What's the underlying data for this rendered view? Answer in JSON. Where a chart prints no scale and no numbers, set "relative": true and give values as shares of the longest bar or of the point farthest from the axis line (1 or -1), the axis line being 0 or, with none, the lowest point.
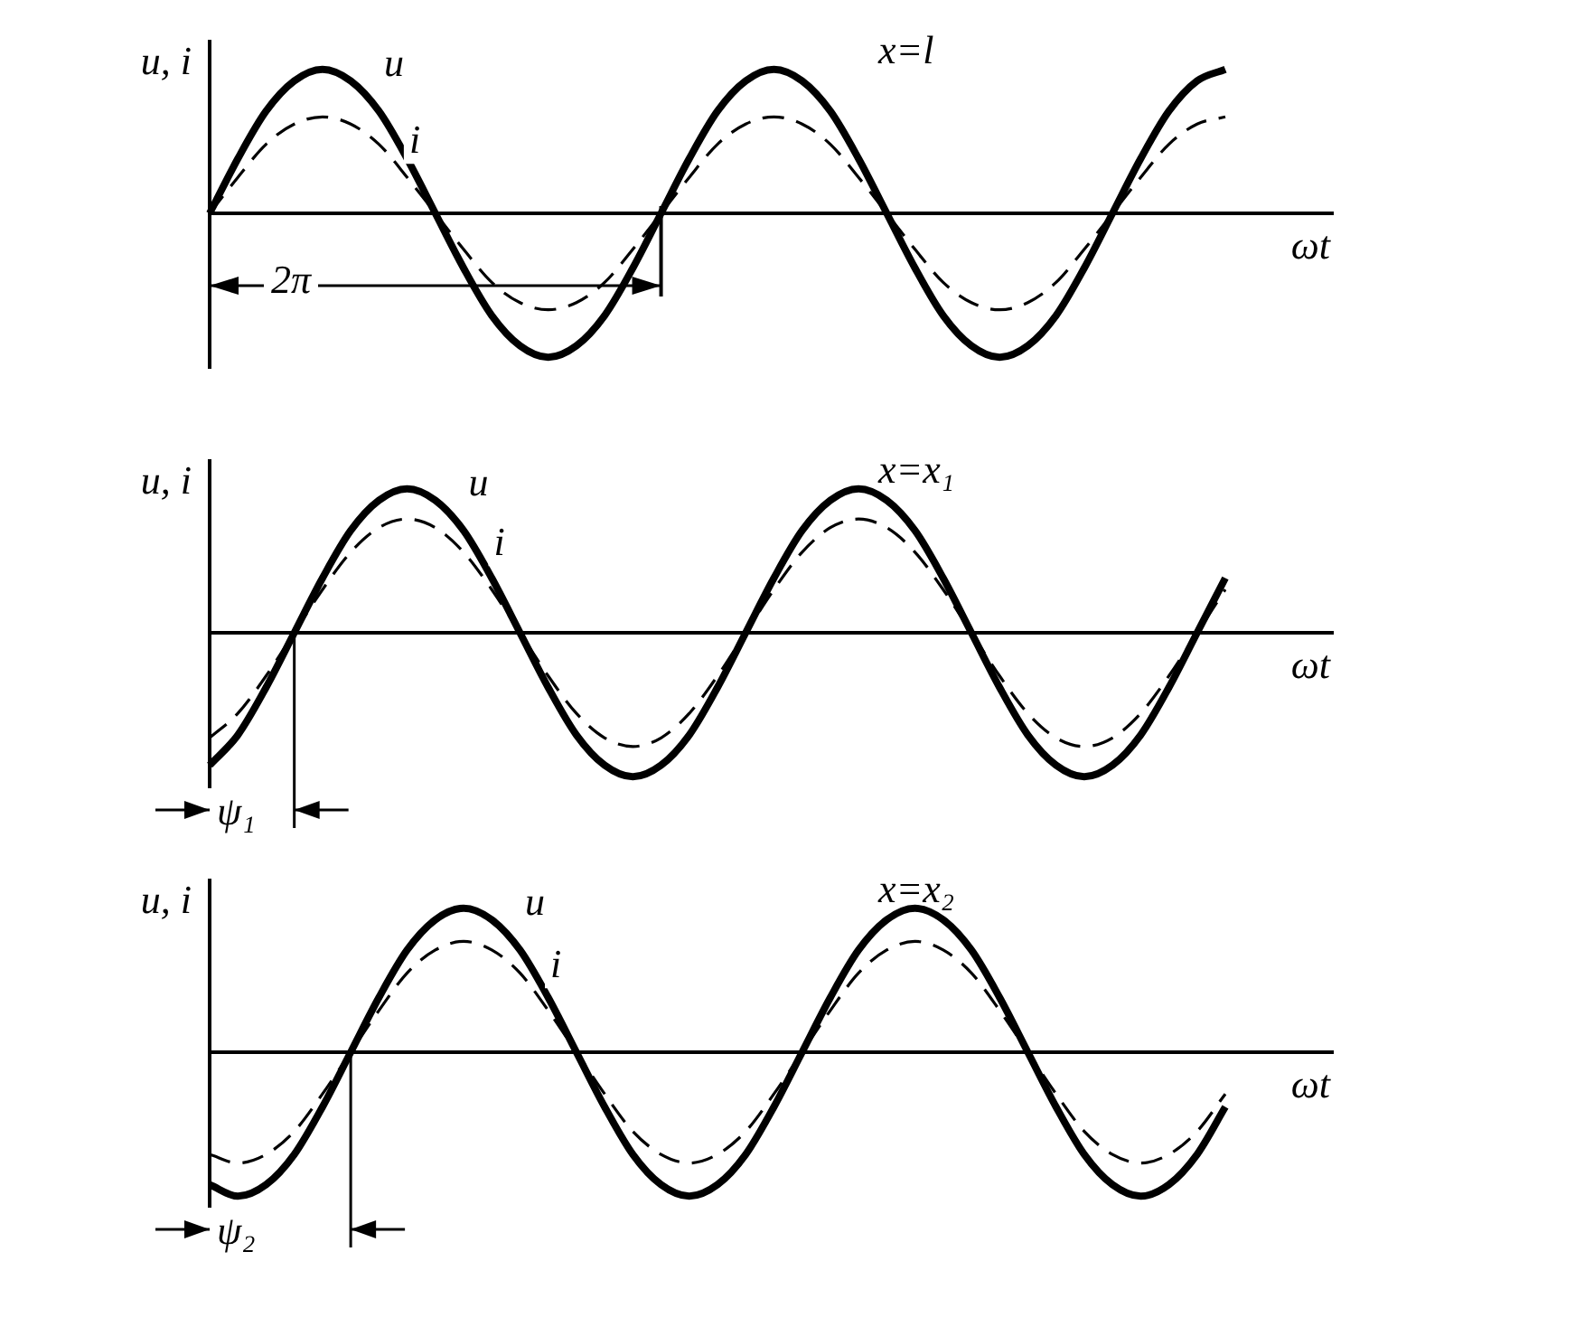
{
  "chart_data": [
    {
      "type": "line",
      "relative": true,
      "xlabel": "ωt",
      "ylabel": "u, i",
      "annotations": [
        "x=l",
        "2π"
      ],
      "categories": [
        null,
        null,
        null,
        null,
        null,
        null,
        null,
        null,
        null,
        null,
        null,
        null,
        null,
        null,
        null,
        null,
        null,
        null,
        null,
        null,
        null,
        null,
        null,
        null,
        null,
        null,
        null,
        null,
        null,
        null,
        null,
        null,
        null,
        null,
        null,
        null,
        null
      ],
      "series": [
        {
          "name": "u",
          "color": "#000000",
          "line_style": "solid",
          "values": [
            0,
            0.38,
            0.71,
            0.92,
            1,
            0.92,
            0.71,
            0.38,
            0,
            -0.38,
            -0.71,
            -0.92,
            -1,
            -0.92,
            -0.71,
            -0.38,
            0,
            0.38,
            0.71,
            0.92,
            1,
            0.92,
            0.71,
            0.38,
            0,
            -0.38,
            -0.71,
            -0.92,
            -1,
            -0.92,
            -0.71,
            -0.38,
            0,
            0.38,
            0.71,
            0.92,
            1
          ]
        },
        {
          "name": "i",
          "color": "#000000",
          "line_style": "dashed",
          "values": [
            0,
            0.25,
            0.48,
            0.62,
            0.67,
            0.62,
            0.48,
            0.25,
            0,
            -0.25,
            -0.48,
            -0.62,
            -0.67,
            -0.62,
            -0.48,
            -0.25,
            0,
            0.25,
            0.48,
            0.62,
            0.67,
            0.62,
            0.48,
            0.25,
            0,
            -0.25,
            -0.48,
            -0.62,
            -0.67,
            -0.62,
            -0.48,
            -0.25,
            0,
            0.25,
            0.48,
            0.62,
            0.67
          ]
        }
      ]
    },
    {
      "type": "line",
      "relative": true,
      "xlabel": "ωt",
      "ylabel": "u, i",
      "annotations": [
        "x=x₁",
        "ψ₁"
      ],
      "categories": [
        null,
        null,
        null,
        null,
        null,
        null,
        null,
        null,
        null,
        null,
        null,
        null,
        null,
        null,
        null,
        null,
        null,
        null,
        null,
        null,
        null,
        null,
        null,
        null,
        null,
        null,
        null,
        null,
        null,
        null,
        null,
        null,
        null,
        null,
        null,
        null,
        null
      ],
      "series": [
        {
          "name": "u",
          "color": "#000000",
          "line_style": "solid",
          "values": [
            -0.92,
            -0.71,
            -0.38,
            0,
            0.38,
            0.71,
            0.92,
            1,
            0.92,
            0.71,
            0.38,
            0,
            -0.38,
            -0.71,
            -0.92,
            -1,
            -0.92,
            -0.71,
            -0.38,
            0,
            0.38,
            0.71,
            0.92,
            1,
            0.92,
            0.71,
            0.38,
            0,
            -0.38,
            -0.71,
            -0.92,
            -1,
            -0.92,
            -0.71,
            -0.38,
            0,
            0.38
          ]
        },
        {
          "name": "i",
          "color": "#000000",
          "line_style": "dashed",
          "values": [
            -0.73,
            -0.56,
            -0.3,
            0,
            0.3,
            0.56,
            0.73,
            0.79,
            0.73,
            0.56,
            0.3,
            0,
            -0.3,
            -0.56,
            -0.73,
            -0.79,
            -0.73,
            -0.56,
            -0.3,
            0,
            0.3,
            0.56,
            0.73,
            0.79,
            0.73,
            0.56,
            0.3,
            0,
            -0.3,
            -0.56,
            -0.73,
            -0.79,
            -0.73,
            -0.56,
            -0.3,
            0,
            0.3
          ]
        }
      ]
    },
    {
      "type": "line",
      "relative": true,
      "xlabel": "ωt",
      "ylabel": "u, i",
      "annotations": [
        "x=x₂",
        "ψ₂"
      ],
      "categories": [
        null,
        null,
        null,
        null,
        null,
        null,
        null,
        null,
        null,
        null,
        null,
        null,
        null,
        null,
        null,
        null,
        null,
        null,
        null,
        null,
        null,
        null,
        null,
        null,
        null,
        null,
        null,
        null,
        null,
        null,
        null,
        null,
        null,
        null,
        null,
        null,
        null
      ],
      "series": [
        {
          "name": "u",
          "color": "#000000",
          "line_style": "solid",
          "values": [
            -0.92,
            -1,
            -0.92,
            -0.71,
            -0.38,
            0,
            0.38,
            0.71,
            0.92,
            1,
            0.92,
            0.71,
            0.38,
            0,
            -0.38,
            -0.71,
            -0.92,
            -1,
            -0.92,
            -0.71,
            -0.38,
            0,
            0.38,
            0.71,
            0.92,
            1,
            0.92,
            0.71,
            0.38,
            0,
            -0.38,
            -0.71,
            -0.92,
            -1,
            -0.92,
            -0.71,
            -0.38
          ]
        },
        {
          "name": "i",
          "color": "#000000",
          "line_style": "dashed",
          "values": [
            -0.71,
            -0.77,
            -0.71,
            -0.55,
            -0.29,
            0,
            0.29,
            0.55,
            0.71,
            0.77,
            0.71,
            0.55,
            0.29,
            0,
            -0.29,
            -0.55,
            -0.71,
            -0.77,
            -0.71,
            -0.55,
            -0.29,
            0,
            0.29,
            0.55,
            0.71,
            0.77,
            0.71,
            0.55,
            0.29,
            0,
            -0.29,
            -0.55,
            -0.71,
            -0.77,
            -0.71,
            -0.55,
            -0.29
          ]
        }
      ]
    }
  ]
}
